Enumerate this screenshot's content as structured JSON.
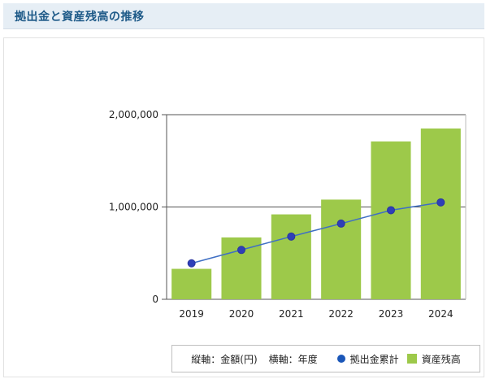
{
  "header": {
    "title": "拠出金と資産残高の推移"
  },
  "legend": {
    "vertical_note": "縦軸：金額(円)",
    "horizontal_note": "横軸：年度",
    "line_label": "拠出金累計",
    "bar_label": "資産残高"
  },
  "colors": {
    "bar": "#9dc94a",
    "line": "#1a56b8",
    "header_text": "#1e5a88",
    "header_bg": "#e6eef5"
  },
  "chart_data": {
    "type": "bar",
    "categories": [
      "2019",
      "2020",
      "2021",
      "2022",
      "2023",
      "2024"
    ],
    "ylim": [
      0,
      2000000
    ],
    "yticks": [
      {
        "value": 0,
        "label": "0"
      },
      {
        "value": 1000000,
        "label": "1,000,000"
      },
      {
        "value": 2000000,
        "label": "2,000,000"
      }
    ],
    "series": [
      {
        "name": "資産残高",
        "kind": "bar",
        "values": [
          330000,
          670000,
          920000,
          1080000,
          1710000,
          1850000
        ]
      },
      {
        "name": "拠出金累計",
        "kind": "line",
        "values": [
          390000,
          535000,
          680000,
          820000,
          965000,
          1050000
        ]
      }
    ]
  }
}
